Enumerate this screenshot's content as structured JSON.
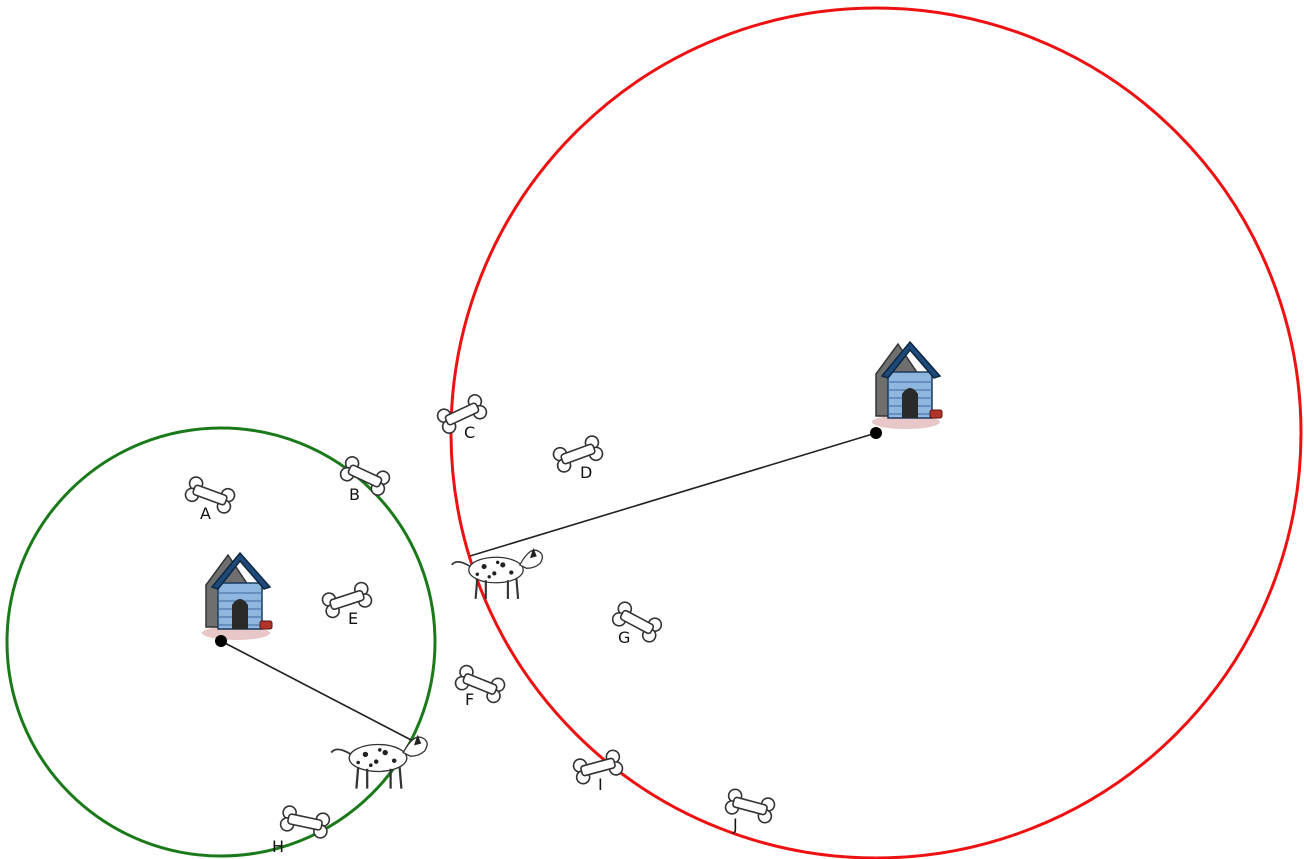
{
  "colors": {
    "background": "#ffffff",
    "ring_left": "#1a7a1a",
    "ring_right": "#ee1111",
    "tether": "#222222",
    "doghouse_roof": "#1e4a7a",
    "doghouse_wall": "#8fb6df",
    "doghouse_door": "#2a2a2a",
    "doghouse_side": "#6f6f6f",
    "bowl": "#b3332b",
    "bone_fill": "#ffffff",
    "bone_stroke": "#333333"
  },
  "icons": {
    "doghouse": "doghouse-icon",
    "dog": "dalmatian-dog-icon",
    "bone": "bone-icon",
    "anchor": "anchor-point"
  },
  "bones": [
    {
      "label": "A"
    },
    {
      "label": "B"
    },
    {
      "label": "C"
    },
    {
      "label": "D"
    },
    {
      "label": "E"
    },
    {
      "label": "F"
    },
    {
      "label": "G"
    },
    {
      "label": "H"
    },
    {
      "label": "I"
    },
    {
      "label": "J"
    }
  ]
}
